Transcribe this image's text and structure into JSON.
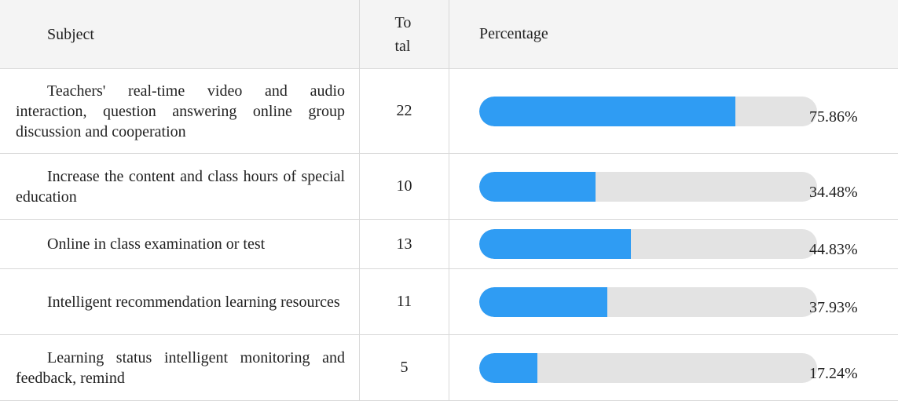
{
  "table": {
    "header": {
      "subject": "Subject",
      "total": "Total",
      "percentage": "Percentage"
    },
    "rows": [
      {
        "subject": "Teachers' real-time video and audio interaction, question answering online group discussion and cooperation",
        "total": 22,
        "percentage": 75.86,
        "percentage_label": "75.86%"
      },
      {
        "subject": "Increase the content and class hours of special education",
        "total": 10,
        "percentage": 34.48,
        "percentage_label": "34.48%"
      },
      {
        "subject": "Online in class examination or test",
        "total": 13,
        "percentage": 44.83,
        "percentage_label": "44.83%"
      },
      {
        "subject": "Intelligent recommendation learning resources",
        "total": 11,
        "percentage": 37.93,
        "percentage_label": "37.93%"
      },
      {
        "subject": "Learning status intelligent monitoring and feedback, remind",
        "total": 5,
        "percentage": 17.24,
        "percentage_label": "17.24%"
      }
    ]
  }
}
